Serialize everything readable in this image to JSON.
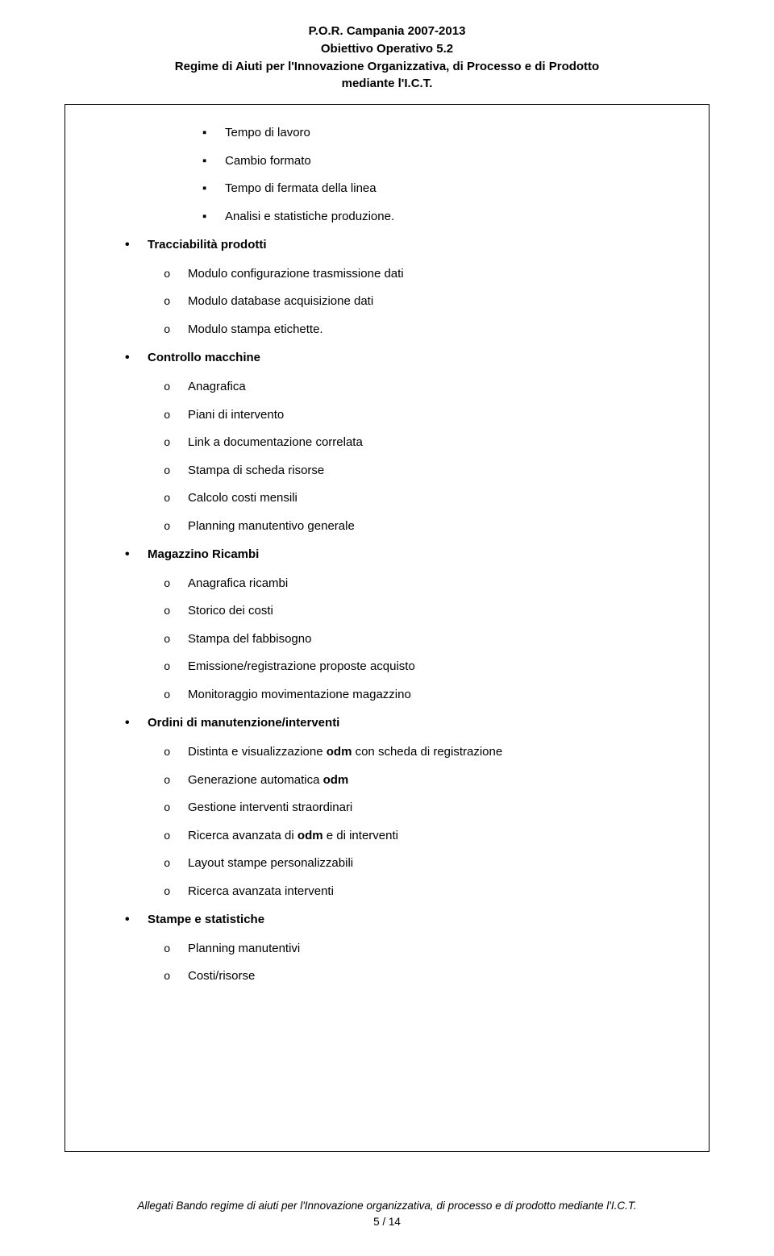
{
  "header": {
    "line1": "P.O.R. Campania 2007-2013",
    "line2": "Obiettivo Operativo 5.2",
    "line3": "Regime di Aiuti per l'Innovazione Organizzativa, di Processo e di Prodotto",
    "line4": "mediante l'I.C.T."
  },
  "top_squares": [
    "Tempo di lavoro",
    "Cambio formato",
    "Tempo di fermata della linea",
    "Analisi e statistiche produzione."
  ],
  "sections": [
    {
      "title": "Tracciabilità prodotti",
      "items": [
        {
          "text": "Modulo configurazione trasmissione dati"
        },
        {
          "text": "Modulo database acquisizione dati"
        },
        {
          "text": "Modulo stampa etichette."
        }
      ]
    },
    {
      "title": "Controllo macchine",
      "items": [
        {
          "text": "Anagrafica"
        },
        {
          "text": "Piani di intervento"
        },
        {
          "text": "Link a documentazione correlata"
        },
        {
          "text": "Stampa di scheda risorse"
        },
        {
          "text": "Calcolo costi mensili"
        },
        {
          "text": "Planning manutentivo generale"
        }
      ]
    },
    {
      "title": "Magazzino Ricambi",
      "items": [
        {
          "text": "Anagrafica ricambi"
        },
        {
          "text": "Storico dei costi"
        },
        {
          "text": "Stampa del fabbisogno"
        },
        {
          "text": "Emissione/registrazione proposte acquisto"
        },
        {
          "text": "Monitoraggio movimentazione magazzino"
        }
      ]
    },
    {
      "title": "Ordini di manutenzione/interventi",
      "items": [
        {
          "pre": "Distinta e visualizzazione ",
          "bold": "odm",
          "post": " con scheda di registrazione"
        },
        {
          "pre": "Generazione automatica ",
          "bold": "odm",
          "post": ""
        },
        {
          "text": "Gestione interventi straordinari"
        },
        {
          "pre": "Ricerca avanzata di ",
          "bold": "odm",
          "post": " e di interventi"
        },
        {
          "text": "Layout stampe personalizzabili"
        },
        {
          "text": "Ricerca avanzata interventi"
        }
      ]
    },
    {
      "title": "Stampe e statistiche",
      "items": [
        {
          "text": "Planning manutentivi"
        },
        {
          "text": "Costi/risorse"
        }
      ]
    }
  ],
  "footer": {
    "line": "Allegati Bando regime di aiuti per l'Innovazione organizzativa, di processo e di prodotto mediante l'I.C.T.",
    "page": "5 / 14"
  }
}
